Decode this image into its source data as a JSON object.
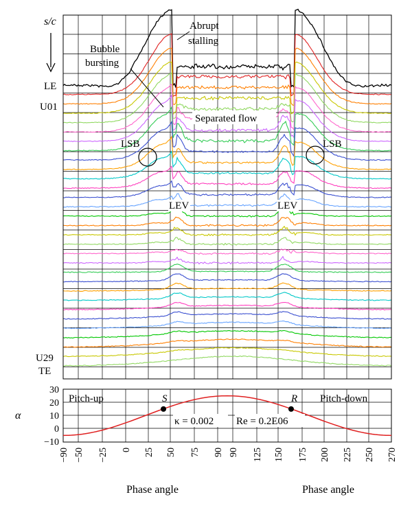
{
  "chart_data": [
    {
      "type": "line",
      "stacked_offset": true,
      "y_axis_label": "s/c",
      "x_tick_labels": [
        "−90",
        "−50",
        "−25",
        "0",
        "25",
        "50",
        "75",
        "90",
        "90",
        "125",
        "150",
        "175",
        "200",
        "225",
        "250",
        "270"
      ],
      "grid": true,
      "sensor_labels": {
        "first": "LE",
        "second": "U01",
        "second_last": "U29",
        "last": "TE"
      },
      "sensor_count": 31,
      "series_colors": [
        "#000000",
        "#e02020",
        "#ff7f00",
        "#c8c800",
        "#90d860",
        "#ff66cc",
        "#cc66ff",
        "#33cc55",
        "#3a4fd0",
        "#ffa000",
        "#00c8c8",
        "#ff3fbf",
        "#3a4fd0",
        "#66a3ff",
        "#00c800"
      ],
      "annotations": [
        {
          "text": "Abrupt"
        },
        {
          "text": "stalling"
        },
        {
          "text": "Bubble"
        },
        {
          "text": "bursting"
        },
        {
          "text": "Separated flow"
        },
        {
          "text": "LSB"
        },
        {
          "text": "LSB"
        },
        {
          "text": "LEV"
        },
        {
          "text": "LEV"
        }
      ]
    },
    {
      "type": "line",
      "y_axis_label": "α",
      "y_ticks": [
        "30",
        "20",
        "10",
        "0",
        "−10"
      ],
      "y_range": [
        -10,
        30
      ],
      "x_range": [
        -90,
        270
      ],
      "x_tick_labels": [
        "−90",
        "−50",
        "−25",
        "0",
        "25",
        "50",
        "75",
        "90",
        "90",
        "125",
        "150",
        "175",
        "200",
        "225",
        "250",
        "270"
      ],
      "x_axis_labels": [
        "Phase angle",
        "Phase angle"
      ],
      "series": [
        {
          "color": "#e02020",
          "mean": 10,
          "amplitude": 15,
          "x": [
            -90,
            -45,
            0,
            45,
            90,
            135,
            180,
            225,
            270
          ],
          "y": [
            -5,
            -0.6,
            10,
            20.6,
            25,
            20.6,
            10,
            -0.6,
            -5
          ]
        }
      ],
      "points": [
        {
          "label": "S",
          "x": 20,
          "y": 15
        },
        {
          "label": "R",
          "x": 160,
          "y": 15
        }
      ],
      "region_labels": {
        "left": "Pitch-up",
        "right": "Pitch-down"
      },
      "params": {
        "kappa": "κ = 0.002",
        "Re": "Re = 0.2E06"
      }
    }
  ]
}
